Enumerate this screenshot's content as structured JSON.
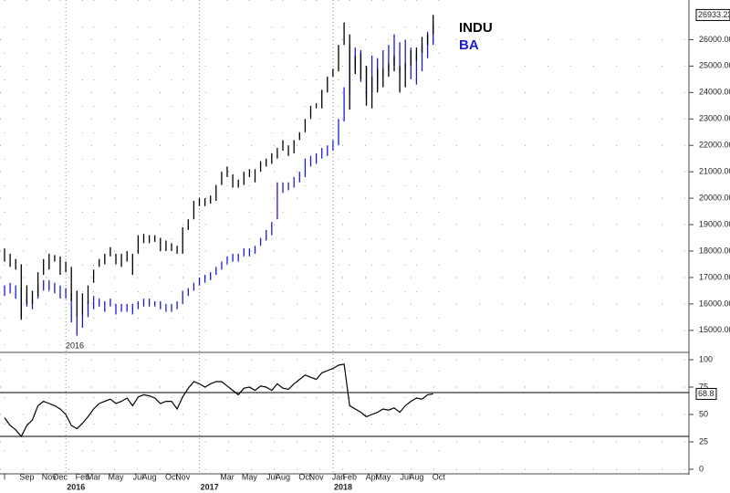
{
  "chart_data": [
    {
      "type": "ohlc",
      "annotation": "2016",
      "categories": [
        "l",
        null,
        null,
        null,
        "Sep",
        null,
        null,
        null,
        "Nov",
        null,
        "Dec",
        null,
        null,
        null,
        "Feb",
        null,
        "Mar",
        null,
        null,
        null,
        "May",
        null,
        null,
        null,
        "Jul",
        null,
        "Aug",
        null,
        null,
        null,
        "Oct",
        null,
        "Nov",
        null,
        null,
        null,
        null,
        null,
        null,
        null,
        "Mar",
        null,
        null,
        null,
        "May",
        null,
        null,
        null,
        "Jul",
        null,
        "Aug",
        null,
        null,
        null,
        "Oct",
        null,
        "Nov",
        null,
        null,
        null,
        "Jan",
        null,
        "Feb",
        null,
        null,
        null,
        "Apr",
        null,
        "May",
        null,
        null,
        null,
        "Jul",
        null,
        "Aug",
        null,
        null,
        null,
        "Oct"
      ],
      "year_labels": [
        null,
        null,
        null,
        null,
        null,
        null,
        null,
        null,
        null,
        null,
        null,
        null,
        "2016",
        null,
        null,
        null,
        null,
        null,
        null,
        null,
        null,
        null,
        null,
        null,
        null,
        null,
        null,
        null,
        null,
        null,
        null,
        null,
        null,
        null,
        null,
        null,
        "2017",
        null,
        null,
        null,
        null,
        null,
        null,
        null,
        null,
        null,
        null,
        null,
        null,
        null,
        null,
        null,
        null,
        null,
        null,
        null,
        null,
        null,
        null,
        null,
        "2018",
        null,
        null,
        null,
        null,
        null,
        null,
        null,
        null,
        null,
        null,
        null,
        null,
        null,
        null,
        null,
        null,
        null,
        null
      ],
      "series": [
        {
          "name": "INDU",
          "color": "#000000",
          "low": [
            17600,
            17400,
            17300,
            15400,
            16000,
            16000,
            16300,
            17100,
            17300,
            17600,
            17100,
            17200,
            16100,
            15500,
            15600,
            16000,
            16800,
            17400,
            17500,
            17800,
            17500,
            17400,
            17600,
            17100,
            17900,
            18300,
            18300,
            18350,
            18000,
            18000,
            18000,
            17900,
            17900,
            18800,
            19200,
            19700,
            19700,
            19800,
            19900,
            20500,
            20800,
            20400,
            20400,
            20500,
            20800,
            20600,
            21000,
            21200,
            21300,
            21500,
            21800,
            21600,
            21700,
            22200,
            22500,
            23000,
            23400,
            23400,
            24000,
            24600,
            24800,
            25800,
            23350,
            24700,
            24500,
            23500,
            23400,
            24000,
            24200,
            24600,
            24800,
            24000,
            24200,
            25000,
            25200,
            25500,
            25800,
            26200,
            null
          ],
          "high": [
            18100,
            17900,
            17700,
            17500,
            16700,
            16500,
            17200,
            17700,
            17900,
            17850,
            17800,
            17600,
            17400,
            16500,
            16400,
            16700,
            17300,
            17700,
            17900,
            18150,
            17900,
            17900,
            18000,
            17900,
            18600,
            18650,
            18600,
            18600,
            18500,
            18400,
            18300,
            18200,
            18900,
            19200,
            19900,
            20000,
            20000,
            20100,
            20500,
            21000,
            21200,
            20900,
            20700,
            21000,
            21100,
            21100,
            21400,
            21500,
            21700,
            21900,
            22200,
            22000,
            22200,
            22500,
            23000,
            23500,
            23600,
            24100,
            24600,
            24900,
            25800,
            26650,
            26200,
            25400,
            25500,
            25000,
            24600,
            24900,
            24900,
            25100,
            25400,
            25000,
            25100,
            25600,
            25700,
            26100,
            26200,
            26933.23,
            null
          ]
        },
        {
          "name": "BA",
          "color": "#1a1ad6",
          "low": [
            16300,
            16400,
            16200,
            15500,
            15900,
            15800,
            16200,
            16500,
            16500,
            16400,
            16200,
            16200,
            15300,
            14800,
            15100,
            15500,
            15800,
            15900,
            15700,
            15900,
            15600,
            15700,
            15700,
            15600,
            15800,
            15900,
            15900,
            15900,
            15800,
            15700,
            15700,
            15800,
            16000,
            16300,
            16500,
            16700,
            16800,
            16900,
            17100,
            17300,
            17500,
            17600,
            17600,
            17800,
            17800,
            17900,
            18200,
            18400,
            18600,
            19200,
            20200,
            20300,
            20400,
            20600,
            20800,
            21200,
            21300,
            21500,
            21600,
            21800,
            22000,
            22900,
            23900,
            24800,
            24400,
            23800,
            24000,
            24300,
            24600,
            24800,
            25000,
            24700,
            24900,
            24500,
            24300,
            24800,
            25300,
            25800,
            null
          ],
          "high": [
            16700,
            16800,
            16700,
            16600,
            16400,
            16200,
            16700,
            16900,
            16900,
            16800,
            16700,
            16600,
            16400,
            15500,
            15700,
            16100,
            16300,
            16200,
            16100,
            16200,
            16000,
            16000,
            16000,
            16000,
            16100,
            16200,
            16200,
            16100,
            16100,
            16000,
            16000,
            16100,
            16500,
            16600,
            16800,
            17000,
            17100,
            17200,
            17400,
            17600,
            17800,
            17900,
            17900,
            18100,
            18100,
            18200,
            18500,
            18800,
            19100,
            20600,
            20600,
            20600,
            20800,
            21000,
            21500,
            21600,
            21700,
            21900,
            22000,
            22200,
            23000,
            24200,
            25800,
            25700,
            25600,
            25000,
            25400,
            25300,
            25600,
            25800,
            26200,
            25900,
            26000,
            25700,
            25500,
            25800,
            26300,
            26600,
            null
          ]
        }
      ],
      "ylim": [
        14200,
        27500
      ],
      "yticks": [
        {
          "value": 15000,
          "label": "15000.00"
        },
        {
          "value": 16000,
          "label": "16000.00"
        },
        {
          "value": 17000,
          "label": "17000.00"
        },
        {
          "value": 18000,
          "label": "18000.00"
        },
        {
          "value": 19000,
          "label": "19000.00"
        },
        {
          "value": 20000,
          "label": "20000.00"
        },
        {
          "value": 21000,
          "label": "21000.00"
        },
        {
          "value": 22000,
          "label": "22000.00"
        },
        {
          "value": 23000,
          "label": "23000.00"
        },
        {
          "value": 24000,
          "label": "24000.00"
        },
        {
          "value": 25000,
          "label": "25000.00"
        },
        {
          "value": 26000,
          "label": "26000.00"
        }
      ],
      "grid": true
    },
    {
      "type": "line",
      "series": [
        {
          "color": "#000000",
          "values": [
            47,
            40,
            36,
            30,
            40,
            45,
            58,
            62,
            60,
            58,
            55,
            50,
            40,
            37,
            42,
            48,
            55,
            60,
            62,
            64,
            60,
            62,
            65,
            58,
            66,
            68,
            67,
            65,
            60,
            62,
            62,
            55,
            66,
            74,
            80,
            78,
            75,
            78,
            80,
            80,
            76,
            72,
            68,
            74,
            75,
            72,
            76,
            75,
            72,
            78,
            74,
            73,
            78,
            82,
            86,
            84,
            82,
            88,
            90,
            92,
            95,
            96,
            58,
            55,
            52,
            48,
            50,
            52,
            55,
            54,
            56,
            52,
            58,
            62,
            65,
            64,
            68,
            68.8,
            null
          ]
        }
      ],
      "ylim": [
        -5,
        105
      ],
      "yticks": [
        0,
        25,
        50,
        75,
        100
      ],
      "levels": [
        30,
        70
      ],
      "grid": true
    }
  ]
}
